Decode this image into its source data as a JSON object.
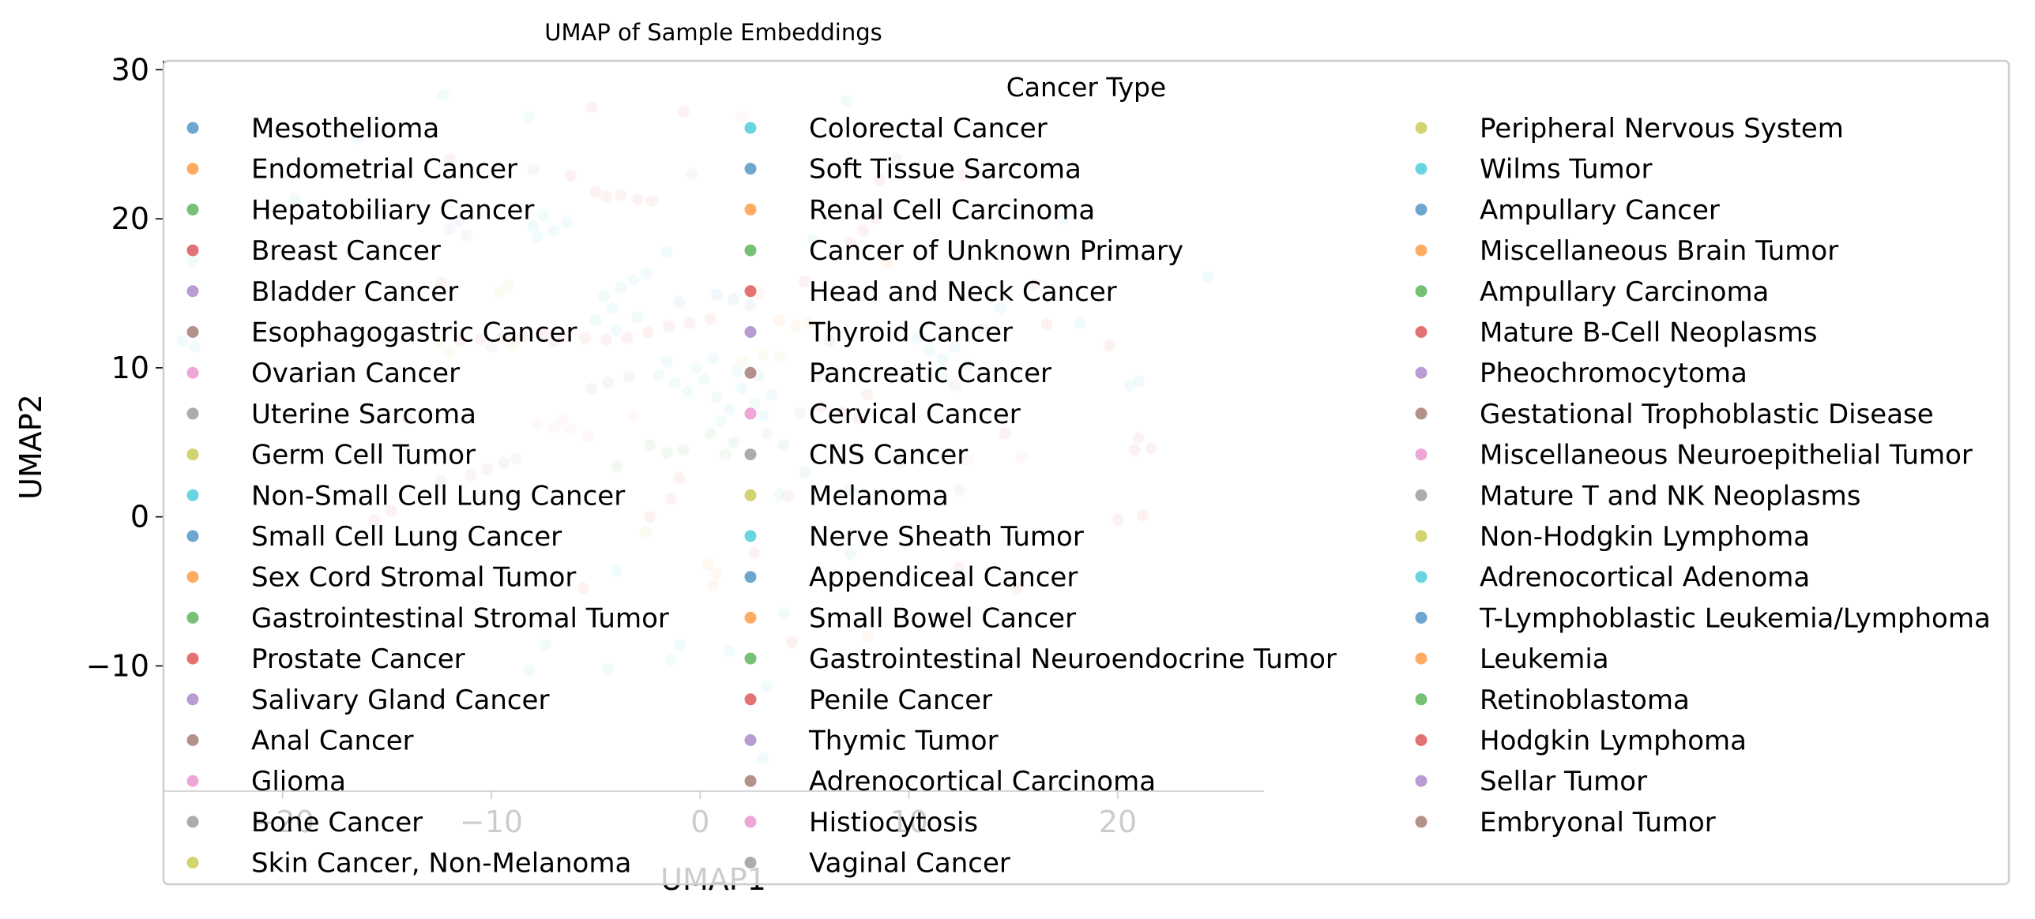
{
  "chart_data": {
    "type": "scatter",
    "title": "UMAP of Sample Embeddings",
    "xlabel": "UMAP1",
    "ylabel": "UMAP2",
    "xlim": [
      -25.7,
      27
    ],
    "ylim": [
      -18.4,
      30.6
    ],
    "xticks": [
      -20,
      -10,
      0,
      10,
      20
    ],
    "xtick_labels": [
      "−20",
      "−10",
      "0",
      "10",
      "20"
    ],
    "yticks": [
      -10,
      0,
      10,
      20,
      30
    ],
    "ytick_labels": [
      "−10",
      "0",
      "10",
      "20",
      "30"
    ],
    "grid": false,
    "point_alpha": 0.3,
    "legend": {
      "title": "Cancer Type",
      "placement": "upper right",
      "columns": 3,
      "entries": [
        {
          "name": "Mesothelioma",
          "color": "#1f77b4"
        },
        {
          "name": "Endometrial Cancer",
          "color": "#ff7f0e"
        },
        {
          "name": "Hepatobiliary Cancer",
          "color": "#2ca02c"
        },
        {
          "name": "Breast Cancer",
          "color": "#d62728"
        },
        {
          "name": "Bladder Cancer",
          "color": "#9467bd"
        },
        {
          "name": "Esophagogastric Cancer",
          "color": "#8c564b"
        },
        {
          "name": "Ovarian Cancer",
          "color": "#e377c2"
        },
        {
          "name": "Uterine Sarcoma",
          "color": "#7f7f7f"
        },
        {
          "name": "Germ Cell Tumor",
          "color": "#bcbd22"
        },
        {
          "name": "Non-Small Cell Lung Cancer",
          "color": "#17becf"
        },
        {
          "name": "Small Cell Lung Cancer",
          "color": "#1f77b4"
        },
        {
          "name": "Sex Cord Stromal Tumor",
          "color": "#ff7f0e"
        },
        {
          "name": "Gastrointestinal Stromal Tumor",
          "color": "#2ca02c"
        },
        {
          "name": "Prostate Cancer",
          "color": "#d62728"
        },
        {
          "name": "Salivary Gland Cancer",
          "color": "#9467bd"
        },
        {
          "name": "Anal Cancer",
          "color": "#8c564b"
        },
        {
          "name": "Glioma",
          "color": "#e377c2"
        },
        {
          "name": "Bone Cancer",
          "color": "#7f7f7f"
        },
        {
          "name": "Skin Cancer, Non-Melanoma",
          "color": "#bcbd22"
        },
        {
          "name": "Colorectal Cancer",
          "color": "#17becf"
        },
        {
          "name": "Soft Tissue Sarcoma",
          "color": "#1f77b4"
        },
        {
          "name": "Renal Cell Carcinoma",
          "color": "#ff7f0e"
        },
        {
          "name": "Cancer of Unknown Primary",
          "color": "#2ca02c"
        },
        {
          "name": "Head and Neck Cancer",
          "color": "#d62728"
        },
        {
          "name": "Thyroid Cancer",
          "color": "#9467bd"
        },
        {
          "name": "Pancreatic Cancer",
          "color": "#8c564b"
        },
        {
          "name": "Cervical Cancer",
          "color": "#e377c2"
        },
        {
          "name": "CNS Cancer",
          "color": "#7f7f7f"
        },
        {
          "name": "Melanoma",
          "color": "#bcbd22"
        },
        {
          "name": "Nerve Sheath Tumor",
          "color": "#17becf"
        },
        {
          "name": "Appendiceal Cancer",
          "color": "#1f77b4"
        },
        {
          "name": "Small Bowel Cancer",
          "color": "#ff7f0e"
        },
        {
          "name": "Gastrointestinal Neuroendocrine Tumor",
          "color": "#2ca02c"
        },
        {
          "name": "Penile Cancer",
          "color": "#d62728"
        },
        {
          "name": "Thymic Tumor",
          "color": "#9467bd"
        },
        {
          "name": "Adrenocortical Carcinoma",
          "color": "#8c564b"
        },
        {
          "name": "Histiocytosis",
          "color": "#e377c2"
        },
        {
          "name": "Vaginal Cancer",
          "color": "#7f7f7f"
        },
        {
          "name": "Peripheral Nervous System",
          "color": "#bcbd22"
        },
        {
          "name": "Wilms Tumor",
          "color": "#17becf"
        },
        {
          "name": "Ampullary Cancer",
          "color": "#1f77b4"
        },
        {
          "name": "Miscellaneous Brain Tumor",
          "color": "#ff7f0e"
        },
        {
          "name": "Ampullary Carcinoma",
          "color": "#2ca02c"
        },
        {
          "name": "Mature B-Cell Neoplasms",
          "color": "#d62728"
        },
        {
          "name": "Pheochromocytoma",
          "color": "#9467bd"
        },
        {
          "name": "Gestational Trophoblastic Disease",
          "color": "#8c564b"
        },
        {
          "name": "Miscellaneous Neuroepithelial Tumor",
          "color": "#e377c2"
        },
        {
          "name": "Mature T and NK Neoplasms",
          "color": "#7f7f7f"
        },
        {
          "name": "Non-Hodgkin Lymphoma",
          "color": "#bcbd22"
        },
        {
          "name": "Adrenocortical Adenoma",
          "color": "#17becf"
        },
        {
          "name": "T-Lymphoblastic Leukemia/Lymphoma",
          "color": "#1f77b4"
        },
        {
          "name": "Leukemia",
          "color": "#ff7f0e"
        },
        {
          "name": "Retinoblastoma",
          "color": "#2ca02c"
        },
        {
          "name": "Hodgkin Lymphoma",
          "color": "#d62728"
        },
        {
          "name": "Sellar Tumor",
          "color": "#9467bd"
        },
        {
          "name": "Embryonal Tumor",
          "color": "#8c564b"
        }
      ]
    },
    "points": [
      {
        "x": -10.5,
        "y": 11.9,
        "c": "#d62728"
      },
      {
        "x": -9.5,
        "y": 12.0,
        "c": "#d62728"
      },
      {
        "x": -8.5,
        "y": 12.1,
        "c": "#d62728"
      },
      {
        "x": -7.5,
        "y": 12.2,
        "c": "#d62728"
      },
      {
        "x": -6.5,
        "y": 12.1,
        "c": "#d62728"
      },
      {
        "x": -5.5,
        "y": 12.0,
        "c": "#d62728"
      },
      {
        "x": -4.5,
        "y": 11.9,
        "c": "#d62728"
      },
      {
        "x": -3.5,
        "y": 12.0,
        "c": "#d62728"
      },
      {
        "x": -11.5,
        "y": 11.8,
        "c": "#d62728"
      },
      {
        "x": -12.5,
        "y": 11.7,
        "c": "#bcbd22"
      },
      {
        "x": -9.0,
        "y": 11.6,
        "c": "#bcbd22"
      },
      {
        "x": -7.0,
        "y": 11.8,
        "c": "#8c564b"
      },
      {
        "x": -2.5,
        "y": 12.4,
        "c": "#d62728"
      },
      {
        "x": -1.5,
        "y": 12.8,
        "c": "#d62728"
      },
      {
        "x": -0.5,
        "y": 13.0,
        "c": "#d62728"
      },
      {
        "x": 0.5,
        "y": 13.3,
        "c": "#d62728"
      },
      {
        "x": -4.5,
        "y": 21.5,
        "c": "#d62728"
      },
      {
        "x": -3.8,
        "y": 21.6,
        "c": "#d62728"
      },
      {
        "x": -3.0,
        "y": 21.3,
        "c": "#d62728"
      },
      {
        "x": -2.3,
        "y": 21.2,
        "c": "#d62728"
      },
      {
        "x": -5.0,
        "y": 21.8,
        "c": "#d62728"
      },
      {
        "x": -4.2,
        "y": 14.0,
        "c": "#17becf"
      },
      {
        "x": -4.6,
        "y": 14.8,
        "c": "#17becf"
      },
      {
        "x": -3.8,
        "y": 15.4,
        "c": "#17becf"
      },
      {
        "x": -3.2,
        "y": 15.9,
        "c": "#17becf"
      },
      {
        "x": -5.0,
        "y": 13.2,
        "c": "#17becf"
      },
      {
        "x": -2.6,
        "y": 16.3,
        "c": "#17becf"
      },
      {
        "x": -4.0,
        "y": 12.5,
        "c": "#17becf"
      },
      {
        "x": -3.0,
        "y": 13.4,
        "c": "#17becf"
      },
      {
        "x": -2.0,
        "y": 9.5,
        "c": "#17becf"
      },
      {
        "x": -1.2,
        "y": 9.0,
        "c": "#17becf"
      },
      {
        "x": -0.6,
        "y": 8.4,
        "c": "#17becf"
      },
      {
        "x": 0.2,
        "y": 9.2,
        "c": "#17becf"
      },
      {
        "x": 0.8,
        "y": 8.0,
        "c": "#17becf"
      },
      {
        "x": 1.4,
        "y": 7.2,
        "c": "#17becf"
      },
      {
        "x": 2.0,
        "y": 8.6,
        "c": "#17becf"
      },
      {
        "x": 2.6,
        "y": 7.6,
        "c": "#17becf"
      },
      {
        "x": 3.0,
        "y": 6.8,
        "c": "#17becf"
      },
      {
        "x": 1.0,
        "y": 6.4,
        "c": "#17becf"
      },
      {
        "x": -0.2,
        "y": 10.0,
        "c": "#17becf"
      },
      {
        "x": 0.6,
        "y": 10.6,
        "c": "#17becf"
      },
      {
        "x": 1.8,
        "y": 9.8,
        "c": "#17becf"
      },
      {
        "x": 3.4,
        "y": 8.2,
        "c": "#17becf"
      },
      {
        "x": -1.6,
        "y": 10.4,
        "c": "#17becf"
      },
      {
        "x": -8.0,
        "y": 19.5,
        "c": "#17becf"
      },
      {
        "x": -7.5,
        "y": 20.2,
        "c": "#17becf"
      },
      {
        "x": -7.0,
        "y": 19.2,
        "c": "#17becf"
      },
      {
        "x": -6.4,
        "y": 19.8,
        "c": "#17becf"
      },
      {
        "x": -7.8,
        "y": 18.8,
        "c": "#17becf"
      },
      {
        "x": 11.0,
        "y": 11.2,
        "c": "#17becf"
      },
      {
        "x": 11.6,
        "y": 10.6,
        "c": "#17becf"
      },
      {
        "x": 12.2,
        "y": 11.4,
        "c": "#17becf"
      },
      {
        "x": 10.4,
        "y": 12.0,
        "c": "#17becf"
      },
      {
        "x": 12.8,
        "y": 10.2,
        "c": "#17becf"
      },
      {
        "x": -12.0,
        "y": 19.3,
        "c": "#9467bd"
      },
      {
        "x": -11.6,
        "y": 19.8,
        "c": "#9467bd"
      },
      {
        "x": -11.2,
        "y": 18.9,
        "c": "#9467bd"
      },
      {
        "x": -7.8,
        "y": 6.3,
        "c": "#e377c2"
      },
      {
        "x": -7.0,
        "y": 6.0,
        "c": "#e377c2"
      },
      {
        "x": -6.2,
        "y": 5.9,
        "c": "#e377c2"
      },
      {
        "x": -5.4,
        "y": 5.4,
        "c": "#e377c2"
      },
      {
        "x": -6.6,
        "y": 6.5,
        "c": "#e377c2"
      },
      {
        "x": -2.4,
        "y": 4.8,
        "c": "#2ca02c"
      },
      {
        "x": -1.6,
        "y": 4.3,
        "c": "#2ca02c"
      },
      {
        "x": -0.8,
        "y": 4.5,
        "c": "#2ca02c"
      },
      {
        "x": 1.2,
        "y": 4.2,
        "c": "#2ca02c"
      },
      {
        "x": 1.6,
        "y": 5.0,
        "c": "#2ca02c"
      },
      {
        "x": -4.0,
        "y": 3.4,
        "c": "#2ca02c"
      },
      {
        "x": 4.0,
        "y": 4.8,
        "c": "#2ca02c"
      },
      {
        "x": 0.5,
        "y": 5.6,
        "c": "#2ca02c"
      },
      {
        "x": -11.0,
        "y": 2.8,
        "c": "#8c564b"
      },
      {
        "x": -10.2,
        "y": 3.2,
        "c": "#8c564b"
      },
      {
        "x": -9.4,
        "y": 3.6,
        "c": "#8c564b"
      },
      {
        "x": -12.4,
        "y": 2.4,
        "c": "#8c564b"
      },
      {
        "x": -5.2,
        "y": 8.6,
        "c": "#8c564b"
      },
      {
        "x": -4.4,
        "y": 9.0,
        "c": "#8c564b"
      },
      {
        "x": -3.4,
        "y": 9.4,
        "c": "#8c564b"
      },
      {
        "x": 2.0,
        "y": 10.4,
        "c": "#bcbd22"
      },
      {
        "x": 3.0,
        "y": 10.9,
        "c": "#bcbd22"
      },
      {
        "x": 3.8,
        "y": 10.7,
        "c": "#bcbd22"
      },
      {
        "x": -9.2,
        "y": 15.5,
        "c": "#bcbd22"
      },
      {
        "x": -9.6,
        "y": 15.1,
        "c": "#bcbd22"
      },
      {
        "x": 0.4,
        "y": -3.2,
        "c": "#ff7f0e"
      },
      {
        "x": 0.8,
        "y": -3.8,
        "c": "#ff7f0e"
      },
      {
        "x": 0.6,
        "y": -4.6,
        "c": "#ff7f0e"
      },
      {
        "x": 3.8,
        "y": 13.2,
        "c": "#ff7f0e"
      },
      {
        "x": 4.6,
        "y": 12.8,
        "c": "#ff7f0e"
      },
      {
        "x": 1.6,
        "y": 14.6,
        "c": "#1f77b4"
      },
      {
        "x": 2.4,
        "y": 14.2,
        "c": "#1f77b4"
      },
      {
        "x": 0.8,
        "y": 14.9,
        "c": "#1f77b4"
      },
      {
        "x": 5.6,
        "y": 9.4,
        "c": "#9467bd"
      },
      {
        "x": 6.4,
        "y": 9.8,
        "c": "#9467bd"
      },
      {
        "x": 5.8,
        "y": 7.4,
        "c": "#d62728"
      },
      {
        "x": 6.8,
        "y": 7.0,
        "c": "#d62728"
      },
      {
        "x": 7.6,
        "y": 6.6,
        "c": "#d62728"
      },
      {
        "x": 8.0,
        "y": 8.2,
        "c": "#d62728"
      },
      {
        "x": 7.2,
        "y": 18.4,
        "c": "#d62728"
      },
      {
        "x": 7.8,
        "y": 19.2,
        "c": "#d62728"
      },
      {
        "x": 8.4,
        "y": 20.0,
        "c": "#d62728"
      },
      {
        "x": 12.6,
        "y": 22.9,
        "c": "#d62728"
      },
      {
        "x": 16.0,
        "y": 15.6,
        "c": "#d62728"
      },
      {
        "x": 16.6,
        "y": 12.9,
        "c": "#d62728"
      },
      {
        "x": 19.6,
        "y": 11.5,
        "c": "#d62728"
      },
      {
        "x": 21.0,
        "y": 5.3,
        "c": "#d62728"
      },
      {
        "x": 21.6,
        "y": 4.6,
        "c": "#d62728"
      },
      {
        "x": 20.8,
        "y": 4.5,
        "c": "#d62728"
      },
      {
        "x": 21.2,
        "y": 0.1,
        "c": "#d62728"
      },
      {
        "x": 20.0,
        "y": -0.2,
        "c": "#d62728"
      },
      {
        "x": 15.2,
        "y": -4.8,
        "c": "#d62728"
      },
      {
        "x": 12.4,
        "y": -3.4,
        "c": "#d62728"
      },
      {
        "x": 2.6,
        "y": -2.4,
        "c": "#d62728"
      },
      {
        "x": -2.4,
        "y": 0.0,
        "c": "#d62728"
      },
      {
        "x": -5.6,
        "y": -4.8,
        "c": "#d62728"
      },
      {
        "x": -14.8,
        "y": 0.4,
        "c": "#d62728"
      },
      {
        "x": -15.6,
        "y": -0.2,
        "c": "#d62728"
      },
      {
        "x": -14.0,
        "y": 6.6,
        "c": "#d62728"
      },
      {
        "x": -12.4,
        "y": 15.7,
        "c": "#d62728"
      },
      {
        "x": -12.0,
        "y": 24.0,
        "c": "#d62728"
      },
      {
        "x": -5.2,
        "y": 27.5,
        "c": "#d62728"
      },
      {
        "x": -0.8,
        "y": 27.2,
        "c": "#d62728"
      },
      {
        "x": -6.2,
        "y": 22.9,
        "c": "#d62728"
      },
      {
        "x": 8.6,
        "y": 22.6,
        "c": "#d62728"
      },
      {
        "x": -1.0,
        "y": 2.6,
        "c": "#d62728"
      },
      {
        "x": -1.4,
        "y": 1.2,
        "c": "#d62728"
      },
      {
        "x": 4.2,
        "y": 1.4,
        "c": "#d62728"
      },
      {
        "x": 5.0,
        "y": 15.8,
        "c": "#d62728"
      },
      {
        "x": 4.4,
        "y": -8.4,
        "c": "#d62728"
      },
      {
        "x": 14.6,
        "y": 5.6,
        "c": "#d62728"
      },
      {
        "x": 12.8,
        "y": 3.8,
        "c": "#e377c2"
      },
      {
        "x": 15.4,
        "y": 4.0,
        "c": "#e377c2"
      },
      {
        "x": 2.0,
        "y": 26.8,
        "c": "#e377c2"
      },
      {
        "x": -3.2,
        "y": 6.8,
        "c": "#e377c2"
      },
      {
        "x": -10.0,
        "y": 11.4,
        "c": "#7f7f7f"
      },
      {
        "x": -8.8,
        "y": 3.9,
        "c": "#7f7f7f"
      },
      {
        "x": -0.4,
        "y": 23.0,
        "c": "#7f7f7f"
      },
      {
        "x": -8.0,
        "y": 23.3,
        "c": "#7f7f7f"
      },
      {
        "x": 12.4,
        "y": 1.8,
        "c": "#7f7f7f"
      },
      {
        "x": -12.3,
        "y": 28.3,
        "c": "#17becf"
      },
      {
        "x": -8.2,
        "y": 26.8,
        "c": "#17becf"
      },
      {
        "x": 7.0,
        "y": 27.9,
        "c": "#17becf"
      },
      {
        "x": 24.3,
        "y": 16.1,
        "c": "#17becf"
      },
      {
        "x": 18.2,
        "y": 13.0,
        "c": "#17becf"
      },
      {
        "x": 20.6,
        "y": 8.8,
        "c": "#17becf"
      },
      {
        "x": 21.0,
        "y": 9.1,
        "c": "#17becf"
      },
      {
        "x": -16.4,
        "y": 25.4,
        "c": "#17becf"
      },
      {
        "x": -19.4,
        "y": 21.3,
        "c": "#17becf"
      },
      {
        "x": -24.2,
        "y": 11.4,
        "c": "#17becf"
      },
      {
        "x": -24.8,
        "y": 11.8,
        "c": "#17becf"
      },
      {
        "x": -24.3,
        "y": 17.2,
        "c": "#17becf"
      },
      {
        "x": 4.0,
        "y": -6.5,
        "c": "#17becf"
      },
      {
        "x": 7.2,
        "y": -2.5,
        "c": "#17becf"
      },
      {
        "x": -8.2,
        "y": -10.3,
        "c": "#17becf"
      },
      {
        "x": -4.4,
        "y": -10.2,
        "c": "#17becf"
      },
      {
        "x": -1.4,
        "y": -9.6,
        "c": "#17becf"
      },
      {
        "x": -4.0,
        "y": -3.6,
        "c": "#17becf"
      },
      {
        "x": -7.4,
        "y": -8.6,
        "c": "#17becf"
      },
      {
        "x": 3.2,
        "y": -11.4,
        "c": "#17becf"
      },
      {
        "x": 3.0,
        "y": -16.2,
        "c": "#17becf"
      },
      {
        "x": 1.4,
        "y": -9.0,
        "c": "#17becf"
      },
      {
        "x": -1.0,
        "y": -8.6,
        "c": "#17becf"
      },
      {
        "x": 11.6,
        "y": 9.4,
        "c": "#17becf"
      },
      {
        "x": 14.4,
        "y": 14.0,
        "c": "#17becf"
      },
      {
        "x": 17.4,
        "y": 20.0,
        "c": "#17becf"
      },
      {
        "x": 3.8,
        "y": 1.5,
        "c": "#17becf"
      },
      {
        "x": -1.6,
        "y": 17.8,
        "c": "#17becf"
      },
      {
        "x": 5.4,
        "y": 18.6,
        "c": "#17becf"
      },
      {
        "x": -2.6,
        "y": -1.0,
        "c": "#bcbd22"
      },
      {
        "x": 5.2,
        "y": 13.0,
        "c": "#bcbd22"
      },
      {
        "x": -12.0,
        "y": 11.0,
        "c": "#bcbd22"
      },
      {
        "x": 9.4,
        "y": 24.0,
        "c": "#1f77b4"
      },
      {
        "x": -1.0,
        "y": 14.4,
        "c": "#1f77b4"
      },
      {
        "x": 2.8,
        "y": 9.5,
        "c": "#1f77b4"
      },
      {
        "x": 9.0,
        "y": 17.0,
        "c": "#ff7f0e"
      },
      {
        "x": 2.8,
        "y": 15.0,
        "c": "#ff7f0e"
      },
      {
        "x": 8.0,
        "y": -8.0,
        "c": "#ff7f0e"
      },
      {
        "x": 5.0,
        "y": 3.0,
        "c": "#2ca02c"
      },
      {
        "x": 7.2,
        "y": 1.8,
        "c": "#2ca02c"
      },
      {
        "x": 3.2,
        "y": 5.6,
        "c": "#9467bd"
      },
      {
        "x": 4.8,
        "y": 7.0,
        "c": "#9467bd"
      },
      {
        "x": 9.6,
        "y": 3.6,
        "c": "#9467bd"
      },
      {
        "x": 6.2,
        "y": 11.8,
        "c": "#8c564b"
      },
      {
        "x": 12.2,
        "y": 8.8,
        "c": "#8c564b"
      },
      {
        "x": 13.6,
        "y": 12.6,
        "c": "#8c564b"
      }
    ]
  }
}
